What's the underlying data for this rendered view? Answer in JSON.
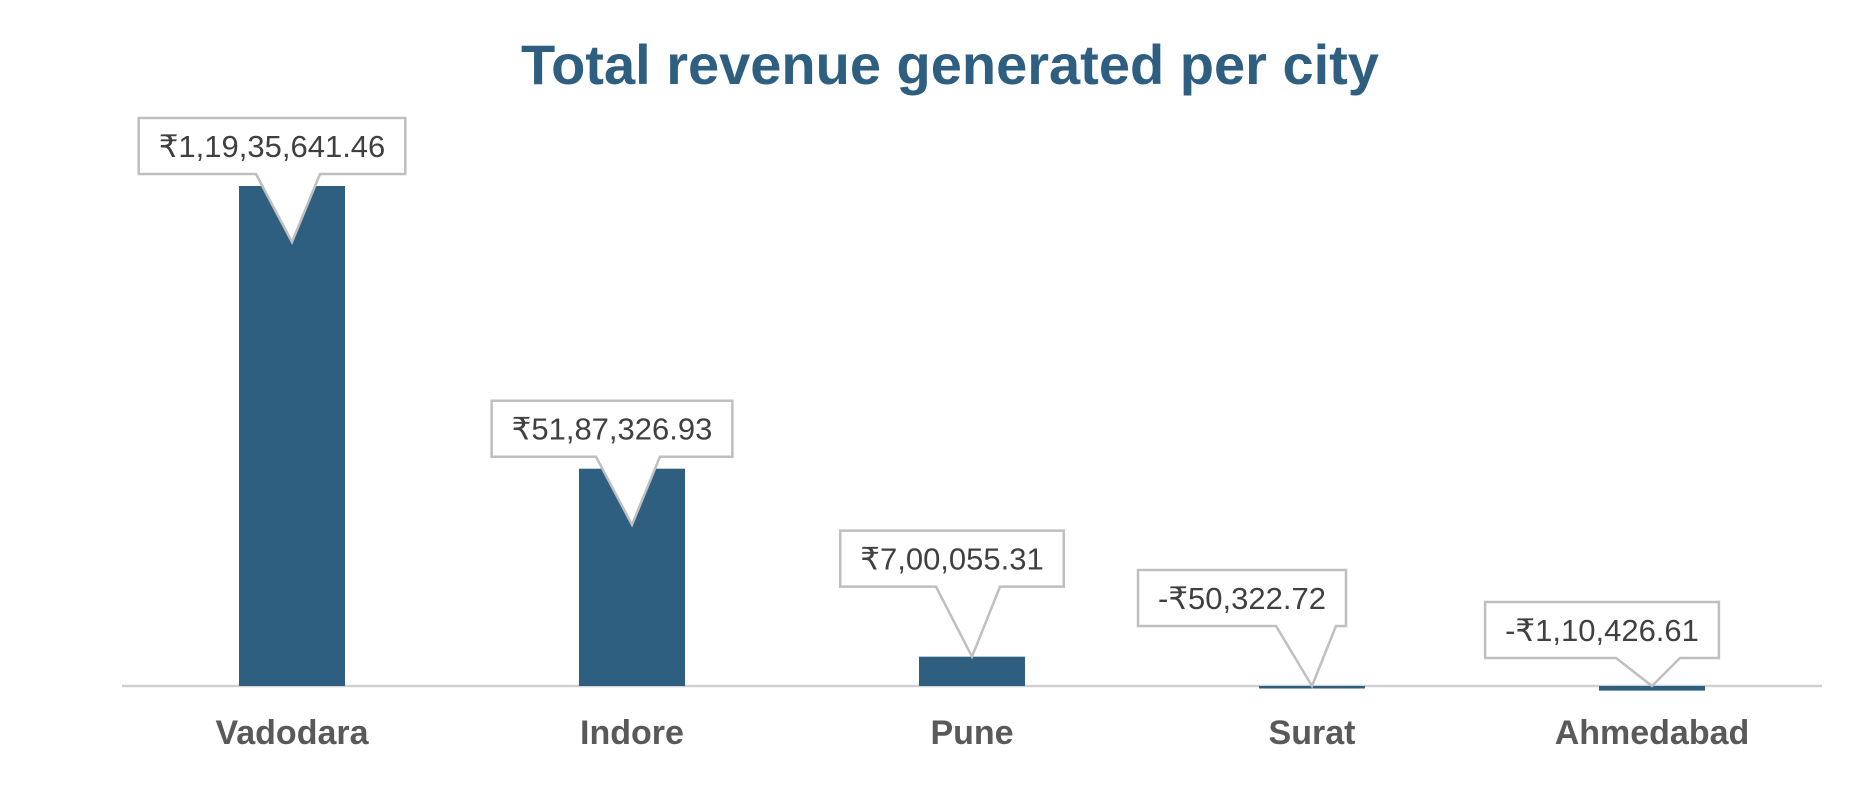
{
  "chart_data": {
    "type": "bar",
    "title": "Total revenue generated per city",
    "xlabel": "",
    "ylabel": "",
    "categories": [
      "Vadodara",
      "Indore",
      "Pune",
      "Surat",
      "Ahmedabad"
    ],
    "values": [
      11935641.46,
      5187326.93,
      700055.31,
      -50322.72,
      -110426.61
    ],
    "data_labels": [
      "₹1,19,35,641.46",
      "₹51,87,326.93",
      "₹7,00,055.31",
      "-₹50,322.72",
      "-₹1,10,426.61"
    ],
    "ylim": [
      -110426.61,
      11935641.46
    ],
    "grid": false,
    "legend": "none",
    "colors": {
      "bar": "#2e5f80",
      "title": "#2e5f80",
      "axis_label": "#595959",
      "data_label": "#404040",
      "callout_border": "#bfbfbf",
      "axis_line": "#d0d0d0"
    }
  }
}
